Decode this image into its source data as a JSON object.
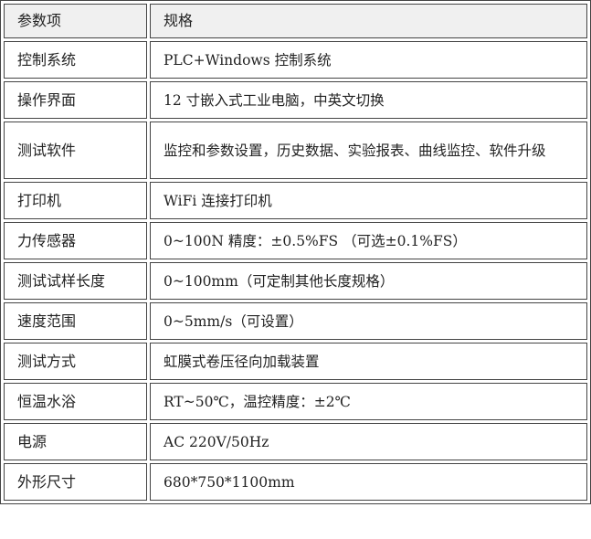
{
  "table": {
    "header": [
      "参数项",
      "规格"
    ],
    "rows": [
      [
        "控制系统",
        "PLC+Windows 控制系统"
      ],
      [
        "操作界面",
        "12 寸嵌入式工业电脑，中英文切换"
      ],
      [
        "测试软件",
        "监控和参数设置，历史数据、实验报表、曲线监控、软件升级"
      ],
      [
        "打印机",
        "WiFi 连接打印机"
      ],
      [
        "力传感器",
        "0~100N 精度：±0.5%FS （可选±0.1%FS）"
      ],
      [
        "测试试样长度",
        "0~100mm（可定制其他长度规格）"
      ],
      [
        "速度范围",
        "0~5mm/s（可设置）"
      ],
      [
        "测试方式",
        "虹膜式卷压径向加载装置"
      ],
      [
        "恒温水浴",
        "RT~50℃，温控精度：±2℃"
      ],
      [
        "电源",
        "AC 220V/50Hz"
      ],
      [
        "外形尺寸",
        "680*750*1100mm"
      ]
    ]
  }
}
